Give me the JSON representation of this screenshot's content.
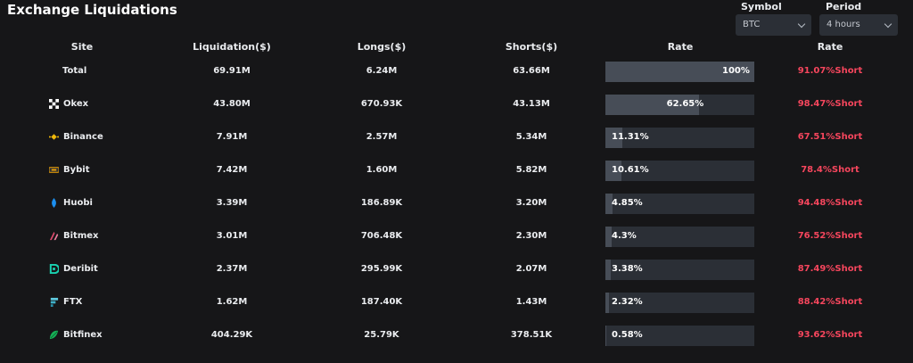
{
  "page": {
    "title": "Exchange Liquidations"
  },
  "controls": {
    "symbol": {
      "label": "Symbol",
      "value": "BTC"
    },
    "period": {
      "label": "Period",
      "value": "4 hours"
    }
  },
  "table": {
    "headers": {
      "site": "Site",
      "liquidation": "Liquidation($)",
      "longs": "Longs($)",
      "shorts": "Shorts($)",
      "rate": "Rate",
      "rate2": "Rate"
    },
    "rows": [
      {
        "site": "Total",
        "icon": "none",
        "liquidation": "69.91M",
        "longs": "6.24M",
        "shorts": "63.66M",
        "rate_label": "100%",
        "rate_value": 100,
        "short_rate": "91.07%Short"
      },
      {
        "site": "Okex",
        "icon": "okex-icon",
        "liquidation": "43.80M",
        "longs": "670.93K",
        "shorts": "43.13M",
        "rate_label": "62.65%",
        "rate_value": 62.65,
        "short_rate": "98.47%Short"
      },
      {
        "site": "Binance",
        "icon": "binance-icon",
        "liquidation": "7.91M",
        "longs": "2.57M",
        "shorts": "5.34M",
        "rate_label": "11.31%",
        "rate_value": 11.31,
        "short_rate": "67.51%Short"
      },
      {
        "site": "Bybit",
        "icon": "bybit-icon",
        "liquidation": "7.42M",
        "longs": "1.60M",
        "shorts": "5.82M",
        "rate_label": "10.61%",
        "rate_value": 10.61,
        "short_rate": "78.4%Short"
      },
      {
        "site": "Huobi",
        "icon": "huobi-icon",
        "liquidation": "3.39M",
        "longs": "186.89K",
        "shorts": "3.20M",
        "rate_label": "4.85%",
        "rate_value": 4.85,
        "short_rate": "94.48%Short"
      },
      {
        "site": "Bitmex",
        "icon": "bitmex-icon",
        "liquidation": "3.01M",
        "longs": "706.48K",
        "shorts": "2.30M",
        "rate_label": "4.3%",
        "rate_value": 4.3,
        "short_rate": "76.52%Short"
      },
      {
        "site": "Deribit",
        "icon": "deribit-icon",
        "liquidation": "2.37M",
        "longs": "295.99K",
        "shorts": "2.07M",
        "rate_label": "3.38%",
        "rate_value": 3.38,
        "short_rate": "87.49%Short"
      },
      {
        "site": "FTX",
        "icon": "ftx-icon",
        "liquidation": "1.62M",
        "longs": "187.40K",
        "shorts": "1.43M",
        "rate_label": "2.32%",
        "rate_value": 2.32,
        "short_rate": "88.42%Short"
      },
      {
        "site": "Bitfinex",
        "icon": "bitfinex-icon",
        "liquidation": "404.29K",
        "longs": "25.79K",
        "shorts": "378.51K",
        "rate_label": "0.58%",
        "rate_value": 0.58,
        "short_rate": "93.62%Short"
      }
    ]
  },
  "colors": {
    "short": "#f6465d",
    "bar_bg": "#2b2f36",
    "bar_fill": "#474d57",
    "background": "#161618"
  }
}
